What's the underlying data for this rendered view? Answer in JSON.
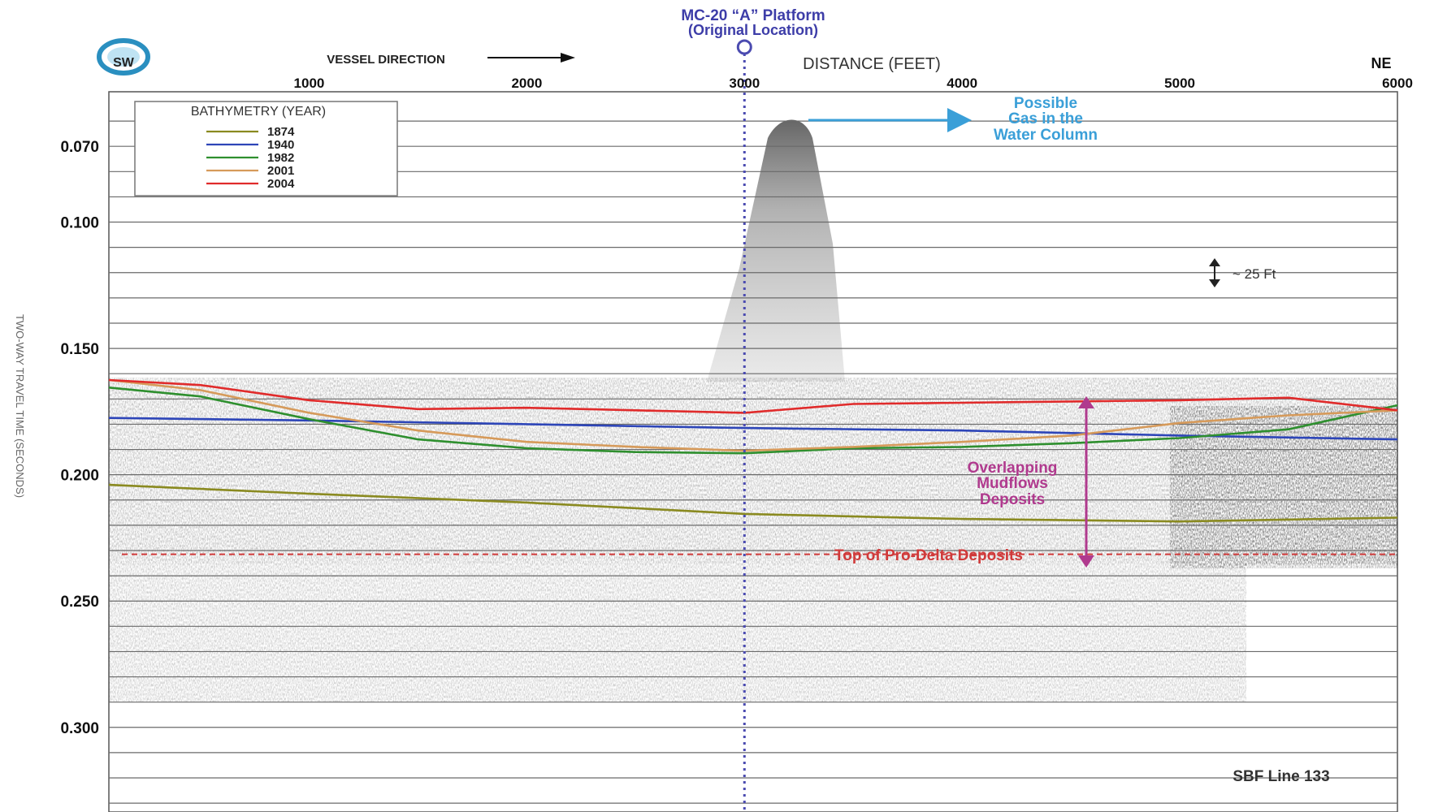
{
  "chart_data": {
    "type": "line",
    "title": "MC-20 “A” Platform",
    "subtitle": "(Original Location)",
    "xlabel": "DISTANCE (FEET)",
    "ylabel": "TWO-WAY TRAVEL TIME (SECONDS)",
    "xlim": [
      80,
      6000
    ],
    "ylim": [
      0.3335,
      0.0484
    ],
    "x_ticks": [
      "1000",
      "2000",
      "3000",
      "4000",
      "5000",
      "6000"
    ],
    "y_ticks": [
      "0.070",
      "0.100",
      "0.150",
      "0.200",
      "0.250",
      "0.300"
    ],
    "grid": true,
    "vessel_direction_label": "VESSEL DIRECTION",
    "compass_label": "SW",
    "ne_label": "NE",
    "platform_x": 3000,
    "legend": {
      "title": "BATHYMETRY (YEAR)",
      "placement": "top-left"
    },
    "series": [
      {
        "name": "1874",
        "color": "#8a8a20",
        "x": [
          80,
          1000,
          2000,
          3000,
          4000,
          5000,
          6000
        ],
        "y": [
          0.204,
          0.2075,
          0.211,
          0.2155,
          0.2175,
          0.2185,
          0.217
        ]
      },
      {
        "name": "1940",
        "color": "#2d45b8",
        "x": [
          80,
          1000,
          2000,
          3000,
          4000,
          5000,
          6000
        ],
        "y": [
          0.1775,
          0.1785,
          0.18,
          0.1815,
          0.1825,
          0.1845,
          0.186
        ]
      },
      {
        "name": "1982",
        "color": "#2e8f2e",
        "x": [
          80,
          500,
          1000,
          1500,
          2000,
          2500,
          3000,
          3500,
          4000,
          4500,
          5000,
          5500,
          6000
        ],
        "y": [
          0.1655,
          0.169,
          0.178,
          0.186,
          0.1895,
          0.191,
          0.1915,
          0.1895,
          0.189,
          0.1875,
          0.1855,
          0.182,
          0.1725
        ]
      },
      {
        "name": "2001",
        "color": "#d69a5a",
        "x": [
          80,
          500,
          1000,
          1500,
          2000,
          2500,
          3000,
          3500,
          4000,
          4500,
          5000,
          5500,
          6000
        ],
        "y": [
          0.1625,
          0.1665,
          0.1755,
          0.1825,
          0.187,
          0.189,
          0.1905,
          0.189,
          0.187,
          0.1845,
          0.1795,
          0.1765,
          0.1745
        ]
      },
      {
        "name": "2004",
        "color": "#e02b2b",
        "x": [
          80,
          500,
          1000,
          1500,
          2000,
          2500,
          3000,
          3500,
          4000,
          4500,
          5000,
          5500,
          6000
        ],
        "y": [
          0.1625,
          0.1645,
          0.1705,
          0.174,
          0.1735,
          0.1745,
          0.1755,
          0.172,
          0.1715,
          0.171,
          0.1705,
          0.1695,
          0.1745
        ]
      }
    ],
    "annotations": {
      "gas_lines": [
        "Possible",
        "Gas in the",
        "Water Column"
      ],
      "mudflow_lines": [
        "Overlapping",
        "Mudflows",
        "Deposits"
      ],
      "prodelta": "Top of Pro-Delta Deposits",
      "scale": "~ 25 Ft",
      "line_id": "SBF Line 133",
      "prodelta_y": 0.2315
    }
  }
}
